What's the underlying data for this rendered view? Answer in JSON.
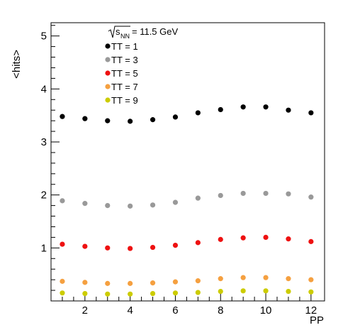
{
  "chart_data": {
    "type": "scatter",
    "title": "",
    "xlabel": "PP",
    "ylabel": "<hits>",
    "xlim": [
      0.5,
      12.6
    ],
    "ylim": [
      0.0,
      5.25
    ],
    "x_ticks": [
      2,
      4,
      6,
      8,
      10,
      12
    ],
    "y_ticks": [
      1,
      2,
      3,
      4,
      5
    ],
    "legend_header": "= 11.5 GeV",
    "legend_header_sqrt": "s",
    "legend_header_sub": "NN",
    "legend_position": "top-center",
    "grid": false,
    "x": [
      1,
      2,
      3,
      4,
      5,
      6,
      7,
      8,
      9,
      10,
      11,
      12
    ],
    "series": [
      {
        "name": "TT = 1",
        "color": "#000000",
        "values": [
          3.48,
          3.44,
          3.4,
          3.39,
          3.42,
          3.47,
          3.55,
          3.61,
          3.66,
          3.66,
          3.6,
          3.55
        ]
      },
      {
        "name": "TT = 3",
        "color": "#999999",
        "values": [
          1.89,
          1.84,
          1.8,
          1.79,
          1.81,
          1.86,
          1.94,
          1.99,
          2.03,
          2.03,
          2.02,
          1.96
        ]
      },
      {
        "name": "TT = 5",
        "color": "#ee1111",
        "values": [
          1.07,
          1.03,
          1.0,
          0.99,
          1.01,
          1.05,
          1.1,
          1.16,
          1.19,
          1.2,
          1.17,
          1.12
        ]
      },
      {
        "name": "TT = 7",
        "color": "#f5a040",
        "values": [
          0.37,
          0.35,
          0.33,
          0.33,
          0.34,
          0.36,
          0.38,
          0.42,
          0.44,
          0.44,
          0.42,
          0.4
        ]
      },
      {
        "name": "TT = 9",
        "color": "#cccc00",
        "values": [
          0.15,
          0.14,
          0.13,
          0.13,
          0.14,
          0.15,
          0.16,
          0.18,
          0.19,
          0.19,
          0.18,
          0.17
        ]
      }
    ]
  }
}
